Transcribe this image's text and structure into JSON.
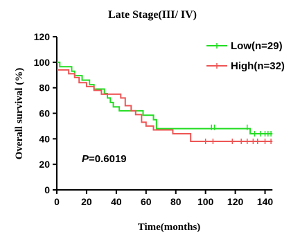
{
  "chart_data": {
    "type": "line",
    "title": "Late Stage(III/ IV)",
    "xlabel": "Time(months)",
    "ylabel": "Overall survival (%)",
    "xlim": [
      0,
      150
    ],
    "ylim": [
      0,
      120
    ],
    "xticks": [
      "0",
      "20",
      "40",
      "60",
      "80",
      "100",
      "120",
      "140"
    ],
    "yticks": [
      "0",
      "20",
      "40",
      "60",
      "80",
      "100",
      "120"
    ],
    "grid": false,
    "legend_position": "top-right",
    "annotation": {
      "italic": "P",
      "text": "=0.6019"
    },
    "series": [
      {
        "name": "Low(n=29)",
        "color": "#22dd22",
        "points": [
          [
            0,
            100
          ],
          [
            2,
            96.5
          ],
          [
            10,
            93
          ],
          [
            12,
            89.5
          ],
          [
            17,
            86
          ],
          [
            22,
            82.5
          ],
          [
            25,
            79
          ],
          [
            32,
            75.5
          ],
          [
            34,
            72
          ],
          [
            36,
            68.5
          ],
          [
            38,
            65
          ],
          [
            42,
            62
          ],
          [
            58,
            58.5
          ],
          [
            65,
            55
          ],
          [
            67,
            48
          ],
          [
            130,
            44
          ],
          [
            145,
            44
          ]
        ],
        "censor": [
          [
            104,
            49
          ],
          [
            106,
            49
          ],
          [
            128,
            49
          ],
          [
            133,
            44
          ],
          [
            137,
            44
          ],
          [
            140,
            44
          ],
          [
            142,
            44
          ],
          [
            144,
            44
          ]
        ]
      },
      {
        "name": "High(n=32)",
        "color": "#ee5555",
        "points": [
          [
            0,
            94
          ],
          [
            8,
            91
          ],
          [
            12,
            88
          ],
          [
            15,
            84
          ],
          [
            20,
            81
          ],
          [
            25,
            78
          ],
          [
            30,
            75
          ],
          [
            43,
            72
          ],
          [
            46,
            66
          ],
          [
            50,
            62
          ],
          [
            53,
            59
          ],
          [
            57,
            53
          ],
          [
            60,
            50
          ],
          [
            65,
            47
          ],
          [
            78,
            44
          ],
          [
            90,
            38
          ],
          [
            145,
            38
          ]
        ],
        "censor": [
          [
            100,
            38
          ],
          [
            105,
            38
          ],
          [
            118,
            38
          ],
          [
            124,
            38
          ],
          [
            128,
            38
          ],
          [
            132,
            38
          ],
          [
            135,
            38
          ],
          [
            140,
            38
          ],
          [
            144,
            38
          ]
        ]
      }
    ]
  }
}
